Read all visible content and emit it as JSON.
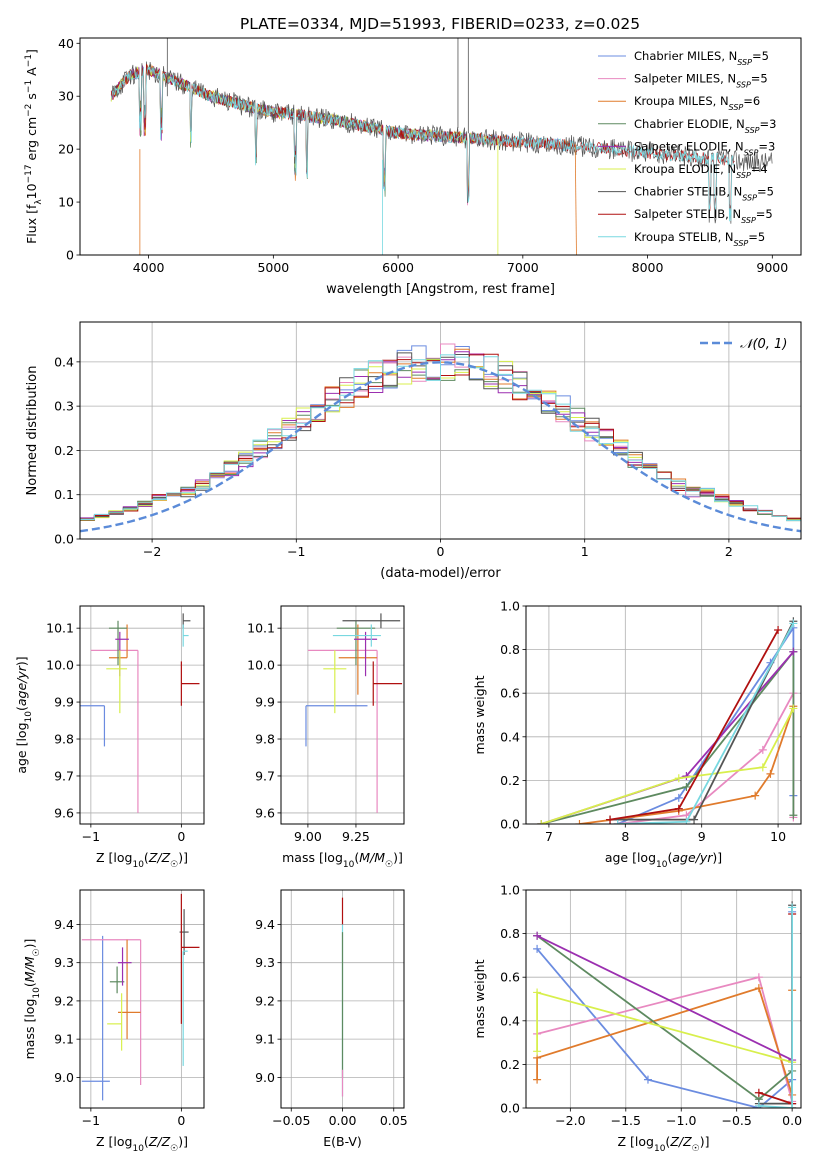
{
  "title": "PLATE=0334, MJD=51993, FIBERID=0233, z=0.025",
  "colors": {
    "chabrier_miles": "#6b8ce0",
    "salpeter_miles": "#e889c0",
    "kroupa_miles": "#e07b2c",
    "chabrier_elodie": "#5e8a60",
    "salpeter_elodie": "#9b2fb0",
    "kroupa_elodie": "#d8ef4c",
    "chabrier_stelib": "#555555",
    "salpeter_stelib": "#b01010",
    "kroupa_stelib": "#78d8e0",
    "normal_curve": "#5b8bd8"
  },
  "chart_data": [
    {
      "id": "spectrum",
      "type": "line",
      "xlabel": "wavelength [Angstrom, rest frame]",
      "ylabel": "Flux [f_λ 10^-17 erg cm^-2 s^-1 A^-1]",
      "xlim": [
        3450,
        9230
      ],
      "ylim": [
        0,
        41
      ],
      "xticks": [
        "4000",
        "5000",
        "6000",
        "7000",
        "8000",
        "9000"
      ],
      "yticks": [
        "0",
        "10",
        "20",
        "30",
        "40"
      ],
      "legend_position": "top-right",
      "series": [
        {
          "name": "Chabrier MILES, N_SSP=5",
          "key": "chabrier_miles"
        },
        {
          "name": "Salpeter MILES, N_SSP=5",
          "key": "salpeter_miles"
        },
        {
          "name": "Kroupa MILES, N_SSP=6",
          "key": "kroupa_miles"
        },
        {
          "name": "Chabrier ELODIE, N_SSP=3",
          "key": "chabrier_elodie"
        },
        {
          "name": "Salpeter ELODIE, N_SSP=3",
          "key": "salpeter_elodie"
        },
        {
          "name": "Kroupa ELODIE, N_SSP=4",
          "key": "kroupa_elodie"
        },
        {
          "name": "Chabrier STELIB, N_SSP=5",
          "key": "chabrier_stelib"
        },
        {
          "name": "Salpeter STELIB, N_SSP=5",
          "key": "salpeter_stelib"
        },
        {
          "name": "Kroupa STELIB, N_SSP=5",
          "key": "kroupa_stelib"
        }
      ],
      "continuum": {
        "x": [
          3700,
          3850,
          4000,
          4200,
          4500,
          4800,
          5000,
          5200,
          5500,
          5800,
          6000,
          6300,
          6600,
          6900,
          7200,
          7500,
          7800,
          8100,
          8400,
          8700,
          9000
        ],
        "y": [
          30,
          34,
          35,
          33,
          30,
          28,
          27,
          26.5,
          25.5,
          24,
          23,
          22.5,
          22,
          21.5,
          21,
          20.5,
          19.8,
          19,
          18.5,
          17.8,
          17.5
        ]
      }
    },
    {
      "id": "residuals",
      "type": "area",
      "xlabel": "(data-model)/error",
      "ylabel": "Normed distribution",
      "xlim": [
        -2.5,
        2.5
      ],
      "ylim": [
        0,
        0.49
      ],
      "grid": true,
      "xticks": [
        "−2",
        "−1",
        "0",
        "1",
        "2"
      ],
      "yticks": [
        "0.0",
        "0.1",
        "0.2",
        "0.3",
        "0.4"
      ],
      "legend_position": "top-right",
      "legend": "𝒩(0, 1)",
      "bin_width": 0.1
    },
    {
      "id": "age_vs_Z",
      "type": "scatter",
      "xlabel": "Z [log10(Z/Z☉)]",
      "ylabel": "age [log10(age/yr)]",
      "xlim": [
        -1.12,
        0.25
      ],
      "ylim": [
        9.57,
        10.16
      ],
      "xticks": [
        "−1",
        "0"
      ],
      "yticks": [
        "9.6",
        "9.7",
        "9.8",
        "9.9",
        "10.0",
        "10.1"
      ],
      "grid": true,
      "points": [
        {
          "key": "chabrier_miles",
          "x": -0.85,
          "y": 9.89,
          "xerr": [
            0.85,
            0.0
          ],
          "yerr": [
            0.11,
            0.0
          ]
        },
        {
          "key": "salpeter_miles",
          "x": -0.48,
          "y": 10.04,
          "xerr": [
            0.52,
            0.0
          ],
          "yerr": [
            0.44,
            0.0
          ]
        },
        {
          "key": "kroupa_miles",
          "x": -0.6,
          "y": 10.02,
          "xerr": [
            0.2,
            0.0
          ],
          "yerr": [
            0.0,
            0.09
          ]
        },
        {
          "key": "chabrier_elodie",
          "x": -0.7,
          "y": 10.1,
          "xerr": [
            0.1,
            0.1
          ],
          "yerr": [
            0.1,
            0.02
          ]
        },
        {
          "key": "salpeter_elodie",
          "x": -0.68,
          "y": 10.07,
          "xerr": [
            0.05,
            0.1
          ],
          "yerr": [
            0.1,
            0.02
          ]
        },
        {
          "key": "kroupa_elodie",
          "x": -0.68,
          "y": 9.99,
          "xerr": [
            0.15,
            0.08
          ],
          "yerr": [
            0.12,
            0.05
          ]
        },
        {
          "key": "chabrier_stelib",
          "x": 0.02,
          "y": 10.12,
          "xerr": [
            0.0,
            0.08
          ],
          "yerr": [
            0.02,
            0.02
          ]
        },
        {
          "key": "salpeter_stelib",
          "x": 0.0,
          "y": 9.95,
          "xerr": [
            0.0,
            0.2
          ],
          "yerr": [
            0.06,
            0.06
          ]
        },
        {
          "key": "kroupa_stelib",
          "x": 0.02,
          "y": 10.08,
          "xerr": [
            0.0,
            0.06
          ],
          "yerr": [
            0.03,
            0.03
          ]
        }
      ]
    },
    {
      "id": "age_vs_mass",
      "type": "scatter",
      "xlabel": "mass [log10(M/M☉)]",
      "ylabel": "",
      "xlim": [
        8.86,
        9.5
      ],
      "ylim": [
        9.57,
        10.16
      ],
      "xticks": [
        "9.00",
        "9.25"
      ],
      "yticks": [
        "9.6",
        "9.7",
        "9.8",
        "9.9",
        "10.0",
        "10.1"
      ],
      "grid": true,
      "points": [
        {
          "key": "chabrier_miles",
          "x": 8.99,
          "y": 9.89,
          "xerr": [
            0.0,
            0.32
          ],
          "yerr": [
            0.11,
            0.0
          ]
        },
        {
          "key": "salpeter_miles",
          "x": 9.36,
          "y": 10.04,
          "xerr": [
            0.36,
            0.0
          ],
          "yerr": [
            0.44,
            0.0
          ]
        },
        {
          "key": "kroupa_miles",
          "x": 9.26,
          "y": 10.02,
          "xerr": [
            0.1,
            0.1
          ],
          "yerr": [
            0.1,
            0.09
          ]
        },
        {
          "key": "chabrier_elodie",
          "x": 9.25,
          "y": 10.1,
          "xerr": [
            0.1,
            0.1
          ],
          "yerr": [
            0.1,
            0.02
          ]
        },
        {
          "key": "salpeter_elodie",
          "x": 9.3,
          "y": 10.07,
          "xerr": [
            0.06,
            0.06
          ],
          "yerr": [
            0.1,
            0.02
          ]
        },
        {
          "key": "kroupa_elodie",
          "x": 9.14,
          "y": 9.99,
          "xerr": [
            0.06,
            0.06
          ],
          "yerr": [
            0.12,
            0.05
          ]
        },
        {
          "key": "chabrier_stelib",
          "x": 9.38,
          "y": 10.12,
          "xerr": [
            0.2,
            0.1
          ],
          "yerr": [
            0.02,
            0.02
          ]
        },
        {
          "key": "salpeter_stelib",
          "x": 9.34,
          "y": 9.95,
          "xerr": [
            0.0,
            0.15
          ],
          "yerr": [
            0.06,
            0.06
          ]
        },
        {
          "key": "kroupa_stelib",
          "x": 9.33,
          "y": 10.08,
          "xerr": [
            0.2,
            0.05
          ],
          "yerr": [
            0.03,
            0.03
          ]
        }
      ]
    },
    {
      "id": "mass_weight_vs_age",
      "type": "line",
      "xlabel": "age [log10(age/yr)]",
      "ylabel": "mass weight",
      "xlim": [
        6.7,
        10.3
      ],
      "ylim": [
        0,
        1.0
      ],
      "xticks": [
        "7",
        "8",
        "9",
        "10"
      ],
      "yticks": [
        "0.0",
        "0.2",
        "0.4",
        "0.6",
        "0.8",
        "1.0"
      ],
      "grid": true,
      "series": [
        {
          "key": "chabrier_miles",
          "x": [
            7.9,
            8.7,
            9.9,
            10.2,
            10.2
          ],
          "y": [
            0.0,
            0.12,
            0.74,
            0.9,
            0.13
          ]
        },
        {
          "key": "salpeter_miles",
          "x": [
            7.9,
            8.8,
            9.8,
            10.2,
            10.2
          ],
          "y": [
            0.0,
            0.04,
            0.34,
            0.6,
            0.03
          ]
        },
        {
          "key": "kroupa_miles",
          "x": [
            7.4,
            8.7,
            9.7,
            9.9,
            10.2
          ],
          "y": [
            0.0,
            0.06,
            0.13,
            0.23,
            0.54
          ]
        },
        {
          "key": "chabrier_elodie",
          "x": [
            6.9,
            8.8,
            10.2,
            10.2
          ],
          "y": [
            0.0,
            0.17,
            0.79,
            0.04
          ]
        },
        {
          "key": "salpeter_elodie",
          "x": [
            6.9,
            8.8,
            10.2
          ],
          "y": [
            0.0,
            0.22,
            0.79
          ]
        },
        {
          "key": "kroupa_elodie",
          "x": [
            6.9,
            8.7,
            9.8,
            10.2
          ],
          "y": [
            0.0,
            0.21,
            0.26,
            0.53
          ]
        },
        {
          "key": "chabrier_stelib",
          "x": [
            7.8,
            8.9,
            10.2
          ],
          "y": [
            0.02,
            0.02,
            0.93
          ]
        },
        {
          "key": "salpeter_stelib",
          "x": [
            7.8,
            8.7,
            10.0
          ],
          "y": [
            0.02,
            0.07,
            0.89
          ]
        },
        {
          "key": "kroupa_stelib",
          "x": [
            7.9,
            8.8,
            10.2
          ],
          "y": [
            0.0,
            0.01,
            0.92
          ]
        }
      ]
    },
    {
      "id": "mass_vs_Z",
      "type": "scatter",
      "xlabel": "Z [log10(Z/Z☉)]",
      "ylabel": "mass [log10(M/M☉)]",
      "xlim": [
        -1.12,
        0.25
      ],
      "ylim": [
        8.92,
        9.49
      ],
      "xticks": [
        "−1",
        "0"
      ],
      "yticks": [
        "9.0",
        "9.1",
        "9.2",
        "9.3",
        "9.4"
      ],
      "grid": true,
      "points": [
        {
          "key": "chabrier_miles",
          "x": -0.87,
          "y": 8.99,
          "xerr": [
            0.23,
            0.08
          ],
          "yerr": [
            0.05,
            0.38
          ]
        },
        {
          "key": "salpeter_miles",
          "x": -0.45,
          "y": 9.36,
          "xerr": [
            0.65,
            0.0
          ],
          "yerr": [
            0.38,
            0.0
          ]
        },
        {
          "key": "kroupa_miles",
          "x": -0.6,
          "y": 9.17,
          "xerr": [
            0.1,
            0.15
          ],
          "yerr": [
            0.07,
            0.19
          ]
        },
        {
          "key": "chabrier_elodie",
          "x": -0.71,
          "y": 9.25,
          "xerr": [
            0.08,
            0.08
          ],
          "yerr": [
            0.03,
            0.04
          ]
        },
        {
          "key": "salpeter_elodie",
          "x": -0.65,
          "y": 9.3,
          "xerr": [
            0.05,
            0.1
          ],
          "yerr": [
            0.06,
            0.04
          ]
        },
        {
          "key": "kroupa_elodie",
          "x": -0.66,
          "y": 9.14,
          "xerr": [
            0.16,
            0.0
          ],
          "yerr": [
            0.07,
            0.08
          ]
        },
        {
          "key": "chabrier_stelib",
          "x": 0.03,
          "y": 9.38,
          "xerr": [
            0.05,
            0.05
          ],
          "yerr": [
            0.06,
            0.06
          ]
        },
        {
          "key": "salpeter_stelib",
          "x": 0.0,
          "y": 9.34,
          "xerr": [
            0.0,
            0.2
          ],
          "yerr": [
            0.2,
            0.14
          ]
        },
        {
          "key": "kroupa_stelib",
          "x": 0.02,
          "y": 9.33,
          "xerr": [
            0.0,
            0.05
          ],
          "yerr": [
            0.3,
            0.0
          ]
        }
      ]
    },
    {
      "id": "mass_vs_ebv",
      "type": "scatter",
      "xlabel": "E(B-V)",
      "ylabel": "",
      "xlim": [
        -0.06,
        0.06
      ],
      "ylim": [
        8.92,
        9.49
      ],
      "xticks": [
        "−0.05",
        "0.00",
        "0.05"
      ],
      "yticks": [
        "9.0",
        "9.1",
        "9.2",
        "9.3",
        "9.4"
      ],
      "grid": true,
      "points": [
        {
          "key": "kroupa_stelib",
          "x": 0.0,
          "y": 9.0,
          "xerr": [
            0,
            0
          ],
          "yerr": [
            0.05,
            0.4
          ]
        },
        {
          "key": "salpeter_stelib",
          "x": 0.0,
          "y": 9.4,
          "xerr": [
            0,
            0
          ],
          "yerr": [
            0.0,
            0.07
          ]
        },
        {
          "key": "chabrier_elodie",
          "x": 0.0,
          "y": 9.2,
          "xerr": [
            0,
            0
          ],
          "yerr": [
            0.2,
            0.18
          ]
        },
        {
          "key": "salpeter_miles",
          "x": 0.0,
          "y": 9.0,
          "xerr": [
            0,
            0
          ],
          "yerr": [
            0.05,
            0.02
          ]
        }
      ]
    },
    {
      "id": "mass_weight_vs_Z",
      "type": "line",
      "xlabel": "Z [log10(Z/Z☉)]",
      "ylabel": "mass weight",
      "xlim": [
        -2.4,
        0.08
      ],
      "ylim": [
        0,
        1.0
      ],
      "xticks": [
        "−2.0",
        "−1.5",
        "−1.0",
        "−0.5",
        "0.0"
      ],
      "yticks": [
        "0.0",
        "0.2",
        "0.4",
        "0.6",
        "0.8",
        "1.0"
      ],
      "grid": true,
      "series": [
        {
          "key": "chabrier_miles",
          "x": [
            -2.3,
            -1.3,
            -0.3,
            0.0,
            0.0
          ],
          "y": [
            0.73,
            0.13,
            0.0,
            0.13,
            0.9
          ]
        },
        {
          "key": "salpeter_miles",
          "x": [
            -2.3,
            -0.3,
            0.0,
            0.0
          ],
          "y": [
            0.34,
            0.6,
            0.03,
            0.0
          ]
        },
        {
          "key": "kroupa_miles",
          "x": [
            -2.3,
            -2.3,
            -0.3,
            0.0,
            0.0
          ],
          "y": [
            0.13,
            0.23,
            0.55,
            0.06,
            0.54
          ]
        },
        {
          "key": "chabrier_elodie",
          "x": [
            -2.3,
            -0.3,
            0.0,
            0.0
          ],
          "y": [
            0.79,
            0.04,
            0.17,
            0.0
          ]
        },
        {
          "key": "salpeter_elodie",
          "x": [
            -2.3,
            0.0,
            0.0
          ],
          "y": [
            0.79,
            0.22,
            0.0
          ]
        },
        {
          "key": "kroupa_elodie",
          "x": [
            -2.3,
            -2.3,
            0.0,
            0.0
          ],
          "y": [
            0.26,
            0.53,
            0.21,
            0.0
          ]
        },
        {
          "key": "chabrier_stelib",
          "x": [
            -0.3,
            0.0,
            0.0
          ],
          "y": [
            0.02,
            0.02,
            0.93
          ]
        },
        {
          "key": "salpeter_stelib",
          "x": [
            -0.3,
            0.0,
            0.0
          ],
          "y": [
            0.07,
            0.02,
            0.89
          ]
        },
        {
          "key": "kroupa_stelib",
          "x": [
            -0.3,
            0.0,
            0.0
          ],
          "y": [
            0.01,
            0.0,
            0.92
          ]
        }
      ]
    }
  ]
}
